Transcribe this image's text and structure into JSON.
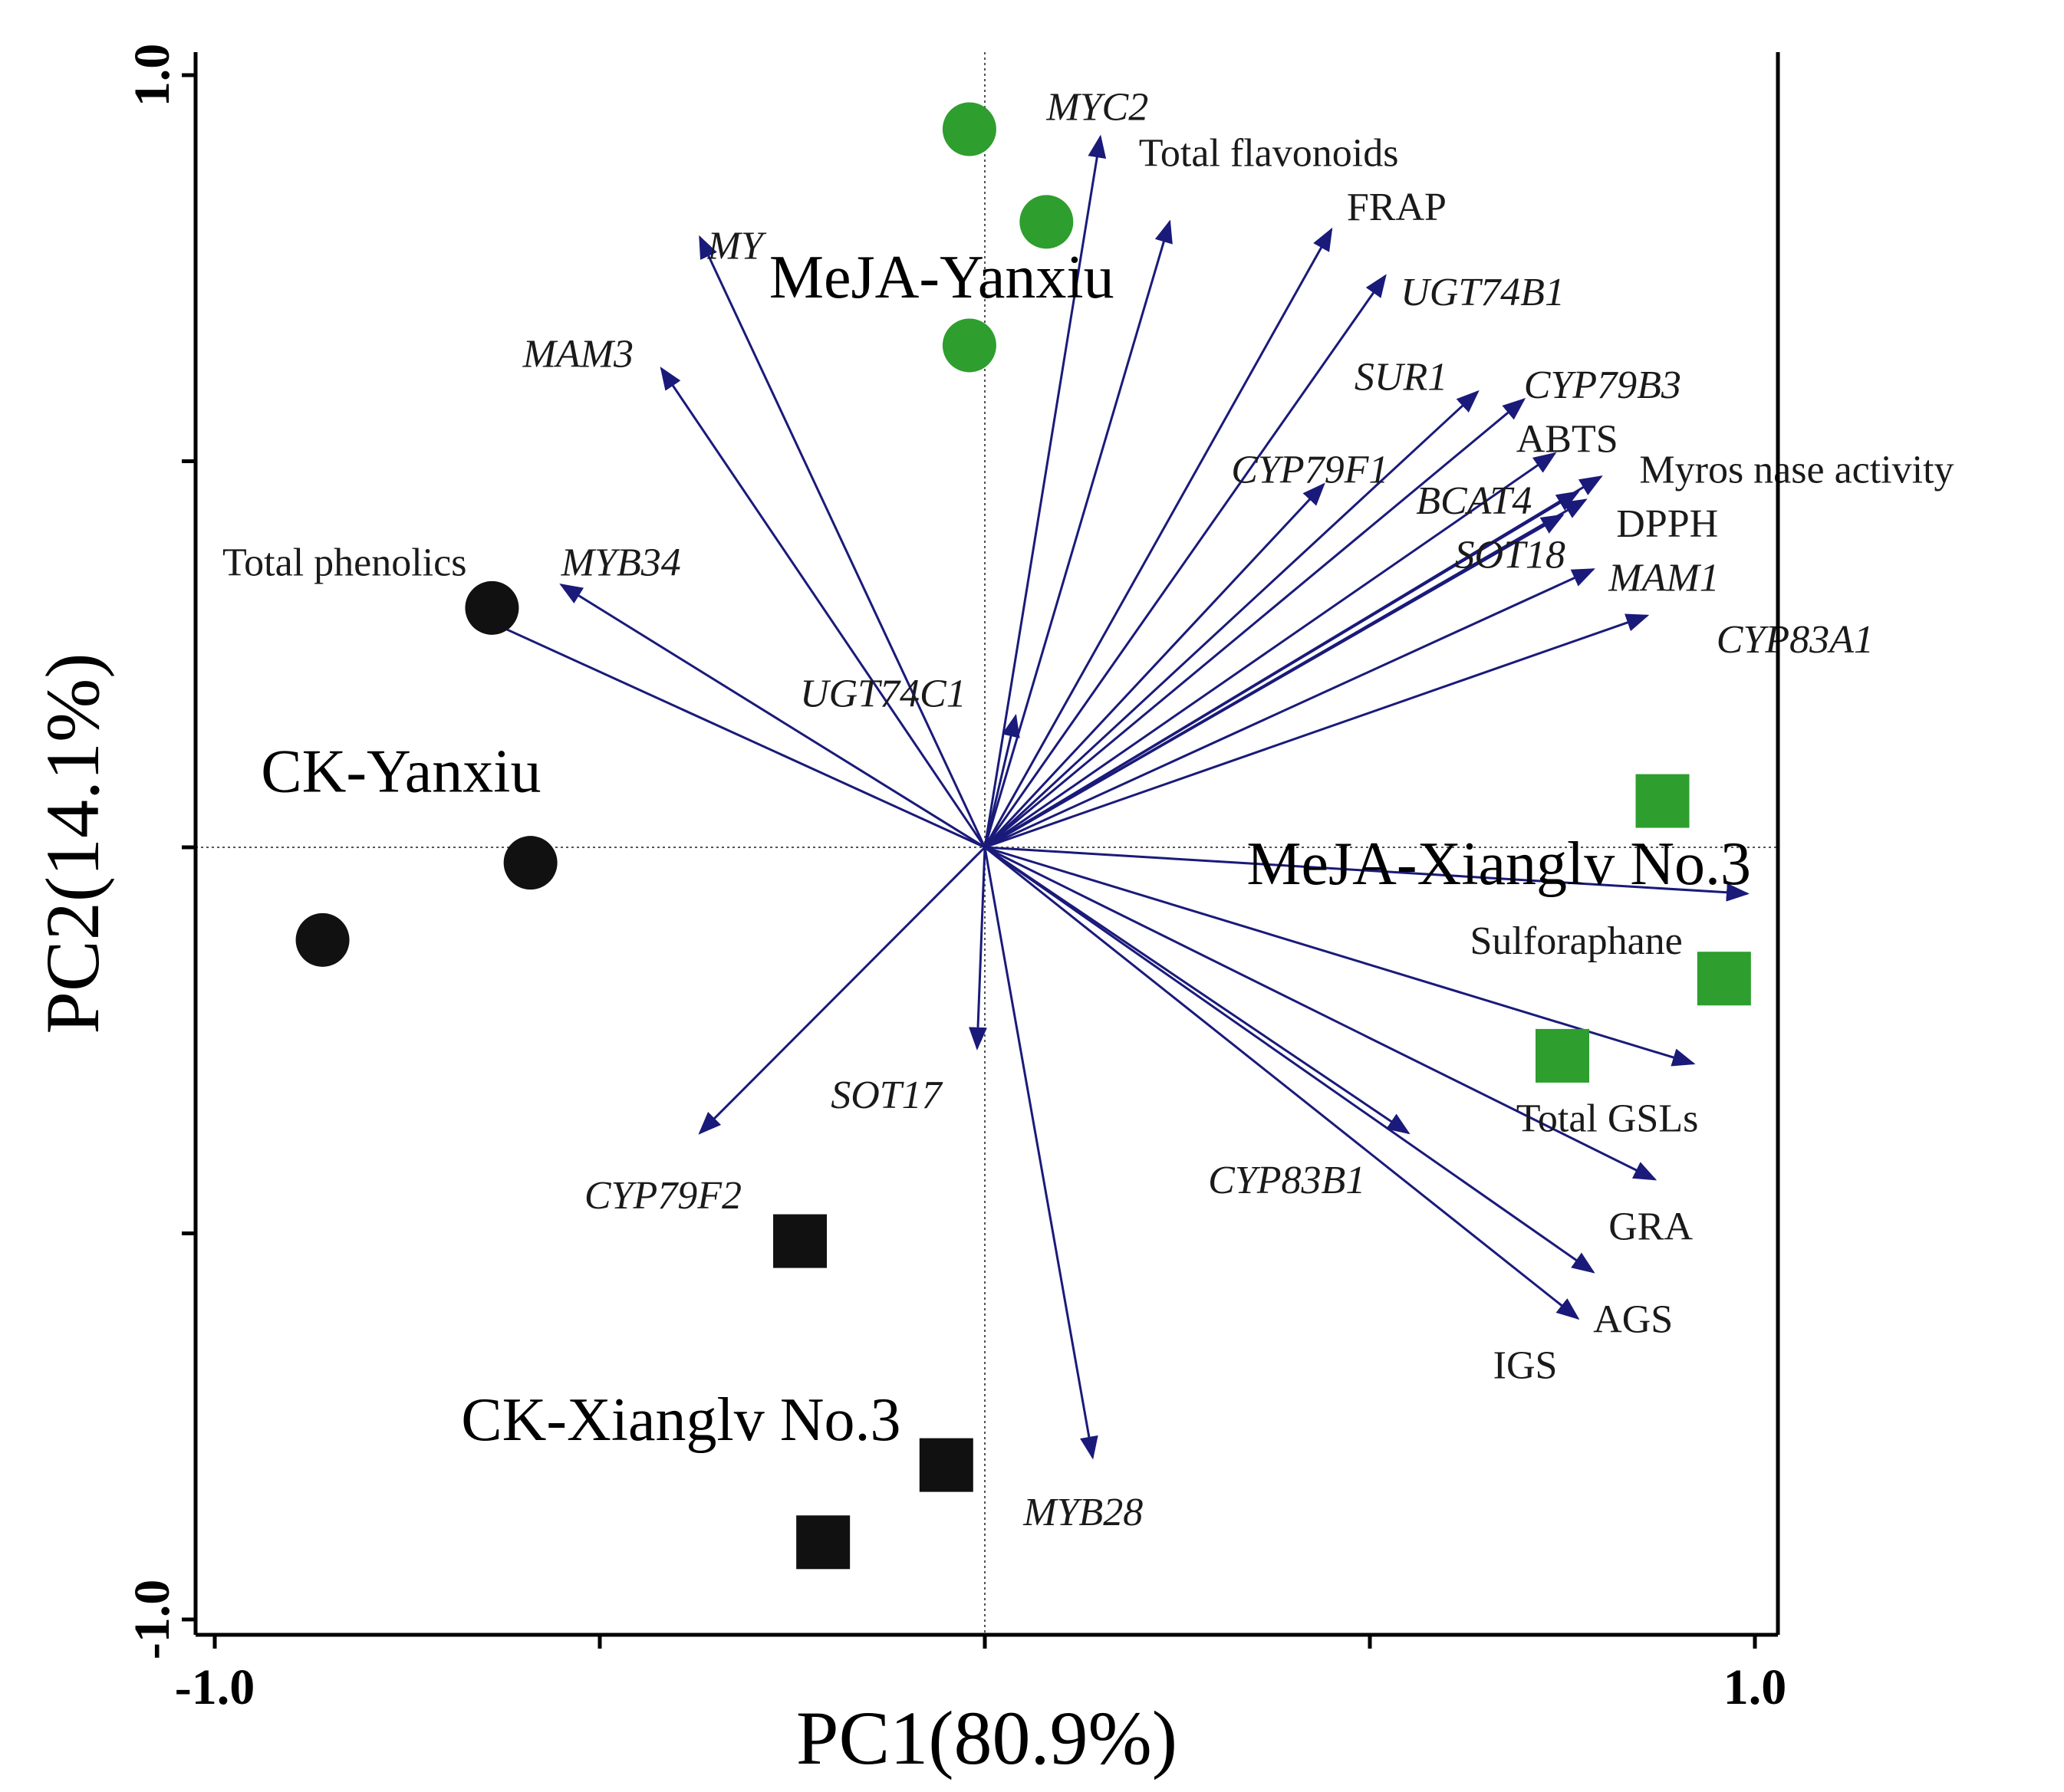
{
  "chart_data": {
    "type": "scatter",
    "subtype": "pca-biplot",
    "xlabel": "PC1(80.9%)",
    "ylabel": "PC2(14.1%)",
    "xlim": [
      -1.0,
      1.0
    ],
    "ylim": [
      -1.0,
      1.0
    ],
    "tick_labels": {
      "x": [
        {
          "v": -1.0,
          "label": "-1.0"
        },
        {
          "v": 1.0,
          "label": "1.0"
        }
      ],
      "y": [
        {
          "v": -1.0,
          "label": "-1.0"
        },
        {
          "v": 1.0,
          "label": "1.0"
        }
      ]
    },
    "minor_ticks": [
      -1.0,
      -0.5,
      0.0,
      0.5,
      1.0
    ],
    "colors": {
      "vector": "#1a1a7a",
      "meja": "#2e9e2e",
      "ck": "#111111"
    },
    "groups": [
      {
        "name": "MeJA-Yanxiu",
        "marker": "circle",
        "color": "#2e9e2e",
        "points": [
          [
            -0.02,
            0.93
          ],
          [
            0.08,
            0.81
          ],
          [
            -0.02,
            0.65
          ]
        ],
        "label_at": [
          -0.28,
          0.74
        ]
      },
      {
        "name": "CK-Yanxiu",
        "marker": "circle",
        "color": "#111111",
        "points": [
          [
            -0.64,
            0.31
          ],
          [
            -0.59,
            -0.02
          ],
          [
            -0.86,
            -0.12
          ]
        ],
        "label_at": [
          -0.94,
          0.1
        ]
      },
      {
        "name": "MeJA-Xianglv No.3",
        "marker": "square",
        "color": "#2e9e2e",
        "points": [
          [
            0.88,
            0.06
          ],
          [
            0.96,
            -0.17
          ],
          [
            0.75,
            -0.27
          ]
        ],
        "label_at": [
          0.34,
          -0.02
        ]
      },
      {
        "name": "CK-Xianglv No.3",
        "marker": "square",
        "color": "#111111",
        "points": [
          [
            -0.24,
            -0.51
          ],
          [
            -0.05,
            -0.8
          ],
          [
            -0.21,
            -0.9
          ]
        ],
        "label_at": [
          -0.68,
          -0.74
        ]
      }
    ],
    "vectors": [
      {
        "name": "MYC2",
        "italic": true,
        "x": 0.15,
        "y": 0.92,
        "lx": 0.08,
        "ly": 0.96
      },
      {
        "name": "Total flavonoids",
        "italic": false,
        "x": 0.24,
        "y": 0.81,
        "lx": 0.2,
        "ly": 0.9
      },
      {
        "name": "FRAP",
        "italic": false,
        "x": 0.45,
        "y": 0.8,
        "lx": 0.47,
        "ly": 0.83
      },
      {
        "name": "UGT74B1",
        "italic": true,
        "x": 0.52,
        "y": 0.74,
        "lx": 0.54,
        "ly": 0.72
      },
      {
        "name": "MY",
        "italic": true,
        "x": -0.37,
        "y": 0.79,
        "lx": -0.36,
        "ly": 0.78
      },
      {
        "name": "MAM3",
        "italic": true,
        "x": -0.42,
        "y": 0.62,
        "lx": -0.6,
        "ly": 0.64
      },
      {
        "name": "SUR1",
        "italic": true,
        "x": 0.64,
        "y": 0.59,
        "lx": 0.48,
        "ly": 0.61
      },
      {
        "name": "CYP79B3",
        "italic": true,
        "x": 0.7,
        "y": 0.58,
        "lx": 0.7,
        "ly": 0.6
      },
      {
        "name": "ABTS",
        "italic": false,
        "x": 0.74,
        "y": 0.51,
        "lx": 0.69,
        "ly": 0.53
      },
      {
        "name": "CYP79F1",
        "italic": true,
        "x": 0.44,
        "y": 0.47,
        "lx": 0.32,
        "ly": 0.49
      },
      {
        "name": "Myros nase activity",
        "italic": false,
        "x": 0.8,
        "y": 0.48,
        "lx": 0.85,
        "ly": 0.49
      },
      {
        "name": "BCAT4",
        "italic": true,
        "x": 0.77,
        "y": 0.46,
        "lx": 0.56,
        "ly": 0.45
      },
      {
        "name": "DPPH",
        "italic": false,
        "x": 0.78,
        "y": 0.45,
        "lx": 0.82,
        "ly": 0.42
      },
      {
        "name": "SOT18",
        "italic": true,
        "x": 0.75,
        "y": 0.43,
        "lx": 0.61,
        "ly": 0.38
      },
      {
        "name": "MAM1",
        "italic": true,
        "x": 0.79,
        "y": 0.36,
        "lx": 0.81,
        "ly": 0.35
      },
      {
        "name": "MYB34",
        "italic": true,
        "x": -0.55,
        "y": 0.34,
        "lx": -0.55,
        "ly": 0.37
      },
      {
        "name": "Total phenolics",
        "italic": false,
        "x": -0.66,
        "y": 0.3,
        "lx": -0.99,
        "ly": 0.37
      },
      {
        "name": "CYP83A1",
        "italic": true,
        "x": 0.86,
        "y": 0.3,
        "lx": 0.95,
        "ly": 0.27
      },
      {
        "name": "UGT74C1",
        "italic": true,
        "x": 0.04,
        "y": 0.17,
        "lx": -0.24,
        "ly": 0.2
      },
      {
        "name": "Sulforaphane",
        "italic": false,
        "x": 0.99,
        "y": -0.06,
        "lx": 0.63,
        "ly": -0.12
      },
      {
        "name": "Total GSLs",
        "italic": false,
        "x": 0.92,
        "y": -0.28,
        "lx": 0.69,
        "ly": -0.35
      },
      {
        "name": "GRA",
        "italic": false,
        "x": 0.87,
        "y": -0.43,
        "lx": 0.81,
        "ly": -0.49
      },
      {
        "name": "CYP83B1",
        "italic": true,
        "x": 0.55,
        "y": -0.37,
        "lx": 0.29,
        "ly": -0.43
      },
      {
        "name": "AGS",
        "italic": false,
        "x": 0.79,
        "y": -0.55,
        "lx": 0.79,
        "ly": -0.61
      },
      {
        "name": "IGS",
        "italic": false,
        "x": 0.77,
        "y": -0.61,
        "lx": 0.66,
        "ly": -0.67
      },
      {
        "name": "SOT17",
        "italic": true,
        "x": -0.01,
        "y": -0.26,
        "lx": -0.2,
        "ly": -0.32
      },
      {
        "name": "CYP79F2",
        "italic": true,
        "x": -0.37,
        "y": -0.37,
        "lx": -0.52,
        "ly": -0.45
      },
      {
        "name": "MYB28",
        "italic": true,
        "x": 0.14,
        "y": -0.79,
        "lx": 0.05,
        "ly": -0.86
      }
    ]
  }
}
